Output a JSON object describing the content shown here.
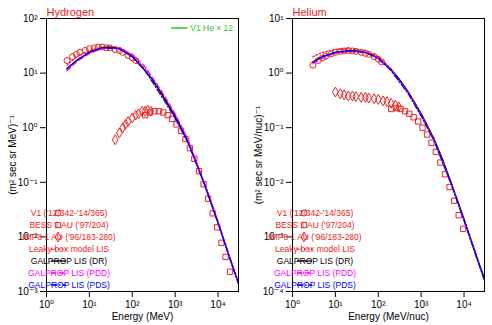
{
  "chart_data": [
    {
      "type": "line",
      "title": "Hydrogen",
      "xlabel": "Energy (MeV)",
      "ylabel": "(m² sec sr MeV)⁻¹",
      "log": true,
      "grid": false,
      "legend": "lower left",
      "xlim": [
        1,
        30000
      ],
      "xticks": [
        {
          "value": 1,
          "label": "10⁰"
        },
        {
          "value": 10,
          "label": "10¹"
        },
        {
          "value": 100,
          "label": "10²"
        },
        {
          "value": 1000,
          "label": "10³"
        },
        {
          "value": 10000,
          "label": "10⁴"
        }
      ],
      "ylim": [
        0.001,
        100
      ],
      "yticks": [
        {
          "value": 0.001,
          "label": "10⁻³"
        },
        {
          "value": 0.01,
          "label": "10⁻²"
        },
        {
          "value": 0.1,
          "label": "10⁻¹"
        },
        {
          "value": 1,
          "label": "10⁰"
        },
        {
          "value": 10,
          "label": "10¹"
        },
        {
          "value": 100,
          "label": "10²"
        }
      ],
      "annotations": [
        {
          "text": "V1 He × 12",
          "color": "#22cc22"
        }
      ],
      "series": [
        {
          "name": "V1 ('12/342-'14/365)",
          "color": "#ee2222",
          "marker": "circle",
          "type": "scatter",
          "x": [
            3,
            4,
            5,
            6,
            8,
            10,
            13,
            16,
            20,
            25,
            30,
            40,
            50,
            60,
            80,
            100,
            120
          ],
          "values": [
            17,
            20,
            22,
            24,
            26,
            28,
            29,
            30,
            30,
            29,
            29,
            27,
            26,
            24,
            21,
            19,
            17
          ]
        },
        {
          "name": "BESS 1 AU ('97/204)",
          "color": "#ee2222",
          "marker": "square",
          "type": "scatter",
          "x": [
            200,
            260,
            330,
            420,
            530,
            670,
            850,
            1080,
            1370,
            1740,
            2200,
            2800,
            3600,
            4600,
            5900,
            7500,
            9500,
            12000,
            15000,
            19000
          ],
          "values": [
            1.7,
            1.9,
            2.0,
            2.0,
            1.9,
            1.7,
            1.45,
            1.15,
            0.87,
            0.62,
            0.42,
            0.27,
            0.16,
            0.092,
            0.05,
            0.027,
            0.015,
            0.0078,
            0.0043,
            0.0023
          ]
        },
        {
          "name": "IMP8 1 AU ('96/183-280)",
          "color": "#ee2222",
          "marker": "diamond",
          "type": "scatter",
          "x": [
            40,
            50,
            60,
            70,
            80,
            100,
            120,
            140,
            170,
            200,
            230,
            270
          ],
          "values": [
            0.6,
            0.8,
            1.0,
            1.15,
            1.3,
            1.5,
            1.7,
            1.8,
            2.0,
            2.0,
            2.1,
            2.0
          ]
        },
        {
          "name": "Leaky-box model LIS",
          "color": "#ee2222",
          "line_style": "dotted",
          "type": "line",
          "x": [
            3,
            5,
            10,
            20,
            30,
            50,
            100,
            200,
            500,
            1000,
            2000,
            5000,
            10000,
            20000,
            30000
          ],
          "values": [
            14,
            20,
            26,
            30,
            30.5,
            29,
            21,
            12,
            4.2,
            1.7,
            0.58,
            0.09,
            0.019,
            0.0037,
            0.0015
          ]
        },
        {
          "name": "GALPROP LIS (DR)",
          "color": "#000000",
          "line_style": "solid",
          "type": "line",
          "x": [
            3,
            5,
            10,
            20,
            30,
            50,
            100,
            200,
            300,
            500,
            1000,
            2000,
            3000,
            5000,
            10000,
            20000,
            30000
          ],
          "values": [
            12,
            17,
            24,
            29,
            30,
            28,
            20,
            11,
            7.5,
            4,
            1.6,
            0.55,
            0.25,
            0.085,
            0.018,
            0.0035,
            0.0014
          ]
        },
        {
          "name": "GALPROP LIS (PDD)",
          "color": "#ff00ff",
          "line_style": "dashed",
          "type": "line",
          "x": [
            3,
            5,
            10,
            20,
            50,
            100,
            200,
            500,
            1000,
            2000,
            5000,
            10000,
            20000,
            30000
          ],
          "values": [
            11,
            16,
            23,
            28,
            29,
            22,
            13,
            4.5,
            1.8,
            0.6,
            0.09,
            0.019,
            0.0036,
            0.0014
          ]
        },
        {
          "name": "GALPROP LIS (PDS)",
          "color": "#0000ff",
          "line_style": "dashdot",
          "type": "line",
          "x": [
            3,
            5,
            10,
            20,
            50,
            100,
            200,
            500,
            1000,
            2000,
            5000,
            10000,
            20000,
            30000
          ],
          "values": [
            12,
            17,
            24,
            29,
            28,
            20,
            11,
            3.6,
            1.5,
            0.52,
            0.085,
            0.018,
            0.0035,
            0.0014
          ]
        }
      ]
    },
    {
      "type": "line",
      "title": "Helium",
      "xlabel": "Energy (MeV/nuc)",
      "ylabel": "(m² sec sr MeV/nuc)⁻¹",
      "log": true,
      "grid": false,
      "legend": "lower left",
      "xlim": [
        1,
        30000
      ],
      "xticks": [
        {
          "value": 1,
          "label": "10⁰"
        },
        {
          "value": 10,
          "label": "10¹"
        },
        {
          "value": 100,
          "label": "10²"
        },
        {
          "value": 1000,
          "label": "10³"
        },
        {
          "value": 10000,
          "label": "10⁴"
        }
      ],
      "ylim": [
        0.0001,
        10
      ],
      "yticks": [
        {
          "value": 0.0001,
          "label": "10⁻⁴"
        },
        {
          "value": 0.001,
          "label": "10⁻³"
        },
        {
          "value": 0.01,
          "label": "10⁻²"
        },
        {
          "value": 0.1,
          "label": "10⁻¹"
        },
        {
          "value": 1,
          "label": "10⁰"
        },
        {
          "value": 10,
          "label": "10¹"
        }
      ],
      "series": [
        {
          "name": "V1 ('12/342-'14/365)",
          "color": "#ee2222",
          "marker": "circle",
          "type": "scatter",
          "x": [
            3,
            4,
            5,
            6,
            8,
            10,
            13,
            16,
            20,
            25,
            30,
            40,
            50,
            60,
            80,
            100,
            120
          ],
          "values": [
            1.4,
            1.7,
            1.9,
            2.05,
            2.25,
            2.4,
            2.5,
            2.55,
            2.6,
            2.55,
            2.5,
            2.4,
            2.3,
            2.2,
            2.0,
            1.8,
            1.6
          ]
        },
        {
          "name": "BESS 1 AU ('97/204)",
          "color": "#ee2222",
          "marker": "square",
          "type": "scatter",
          "x": [
            200,
            260,
            330,
            420,
            530,
            670,
            850,
            1080,
            1370,
            1740,
            2200,
            2800,
            3600,
            4600,
            5900,
            7500,
            9500
          ],
          "values": [
            0.22,
            0.23,
            0.22,
            0.2,
            0.18,
            0.155,
            0.13,
            0.1,
            0.075,
            0.053,
            0.036,
            0.023,
            0.014,
            0.0082,
            0.0046,
            0.0025,
            0.0014
          ]
        },
        {
          "name": "IMP8 1 AU ('96/183-280)",
          "color": "#ee2222",
          "marker": "diamond",
          "type": "scatter",
          "x": [
            10,
            13,
            16,
            20,
            25,
            30,
            40,
            50,
            60,
            80,
            100,
            130,
            160,
            200,
            250,
            300
          ],
          "values": [
            0.45,
            0.42,
            0.4,
            0.38,
            0.38,
            0.37,
            0.36,
            0.36,
            0.35,
            0.34,
            0.33,
            0.31,
            0.3,
            0.28,
            0.26,
            0.24
          ]
        },
        {
          "name": "Leaky-box model LIS",
          "color": "#ee2222",
          "line_style": "dotted",
          "type": "line",
          "x": [
            3,
            5,
            10,
            20,
            50,
            100,
            200,
            500,
            1000,
            2000,
            5000,
            10000,
            20000,
            30000
          ],
          "values": [
            2.0,
            2.4,
            2.7,
            2.8,
            2.6,
            2.0,
            1.2,
            0.46,
            0.18,
            0.062,
            0.0098,
            0.0021,
            0.00042,
            0.00017
          ]
        },
        {
          "name": "GALPROP LIS (DR)",
          "color": "#000000",
          "line_style": "solid",
          "type": "line",
          "x": [
            3,
            5,
            10,
            20,
            30,
            50,
            100,
            200,
            300,
            500,
            1000,
            2000,
            3000,
            5000,
            10000,
            20000,
            30000
          ],
          "values": [
            1.6,
            2.0,
            2.4,
            2.55,
            2.55,
            2.4,
            1.9,
            1.15,
            0.8,
            0.45,
            0.18,
            0.062,
            0.029,
            0.0098,
            0.0021,
            0.00042,
            0.00017
          ]
        },
        {
          "name": "GALPROP LIS (PDD)",
          "color": "#ff00ff",
          "line_style": "dashed",
          "type": "line",
          "x": [
            3,
            5,
            10,
            20,
            50,
            100,
            200,
            500,
            1000,
            2000,
            5000,
            10000,
            20000,
            30000
          ],
          "values": [
            1.5,
            1.9,
            2.3,
            2.5,
            2.4,
            1.9,
            1.15,
            0.44,
            0.17,
            0.06,
            0.0095,
            0.002,
            0.0004,
            0.00016
          ]
        },
        {
          "name": "GALPROP LIS (PDS)",
          "color": "#0000ff",
          "line_style": "dashdot",
          "type": "line",
          "x": [
            3,
            5,
            10,
            20,
            50,
            100,
            200,
            500,
            1000,
            2000,
            5000,
            10000,
            20000,
            30000
          ],
          "values": [
            1.6,
            2.0,
            2.4,
            2.55,
            2.4,
            1.85,
            1.1,
            0.42,
            0.165,
            0.058,
            0.0093,
            0.002,
            0.0004,
            0.00016
          ]
        }
      ]
    }
  ]
}
